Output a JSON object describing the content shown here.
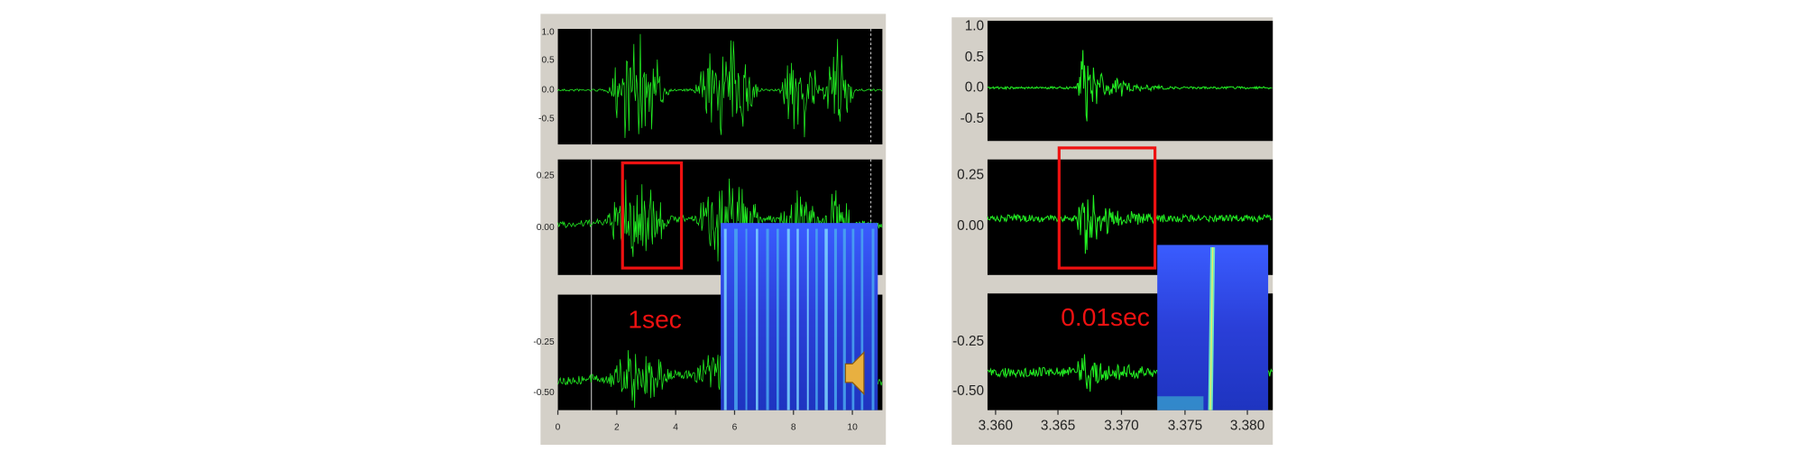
{
  "panels": [
    {
      "plots": [
        {
          "yticks": [
            "1.0",
            "0.5",
            "0.0",
            "-0.5"
          ]
        },
        {
          "yticks": [
            "0.25",
            "0.00"
          ]
        },
        {
          "yticks": [
            "-0.25",
            "-0.50"
          ]
        }
      ],
      "xticks": [
        "0",
        "2",
        "4",
        "6",
        "8",
        "10"
      ],
      "annotation": "1sec"
    },
    {
      "plots": [
        {
          "yticks": [
            "1.0",
            "0.5",
            "0.0",
            "-0.5"
          ]
        },
        {
          "yticks": [
            "0.25",
            "0.00"
          ]
        },
        {
          "yticks": [
            "-0.25",
            "-0.50"
          ]
        }
      ],
      "xticks": [
        "3.360",
        "3.365",
        "3.370",
        "3.375",
        "3.380"
      ],
      "annotation": "0.01sec"
    }
  ]
}
